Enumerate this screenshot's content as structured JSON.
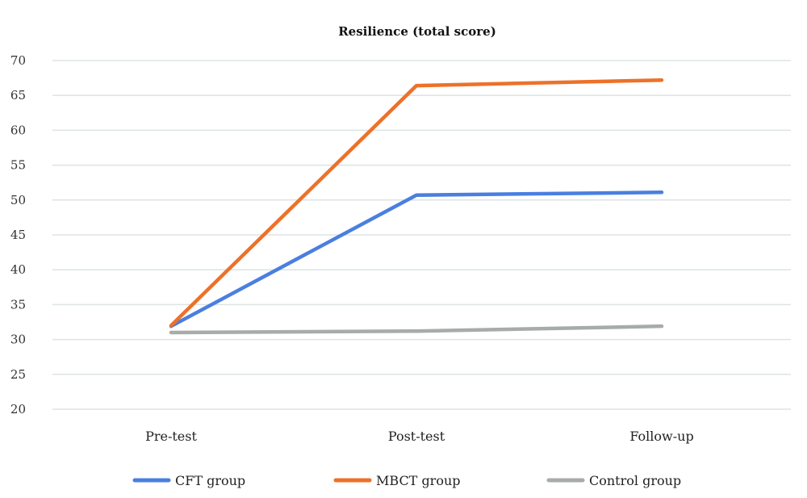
{
  "chart_data": {
    "type": "line",
    "title": "Resilience (total score)",
    "xlabel": "",
    "ylabel": "",
    "categories": [
      "Pre-test",
      "Post-test",
      "Follow-up"
    ],
    "ylim": [
      20,
      70
    ],
    "yticks": [
      20,
      25,
      30,
      35,
      40,
      45,
      50,
      55,
      60,
      65,
      70
    ],
    "grid": true,
    "legend_position": "bottom",
    "series": [
      {
        "name": "CFT group",
        "color": "#4a7fe0",
        "values": [
          31.9,
          50.7,
          51.1
        ]
      },
      {
        "name": "MBCT group",
        "color": "#ed7129",
        "values": [
          32.0,
          66.4,
          67.2
        ]
      },
      {
        "name": "Control group",
        "color": "#a7abaa",
        "values": [
          31.0,
          31.2,
          31.9
        ]
      }
    ]
  }
}
